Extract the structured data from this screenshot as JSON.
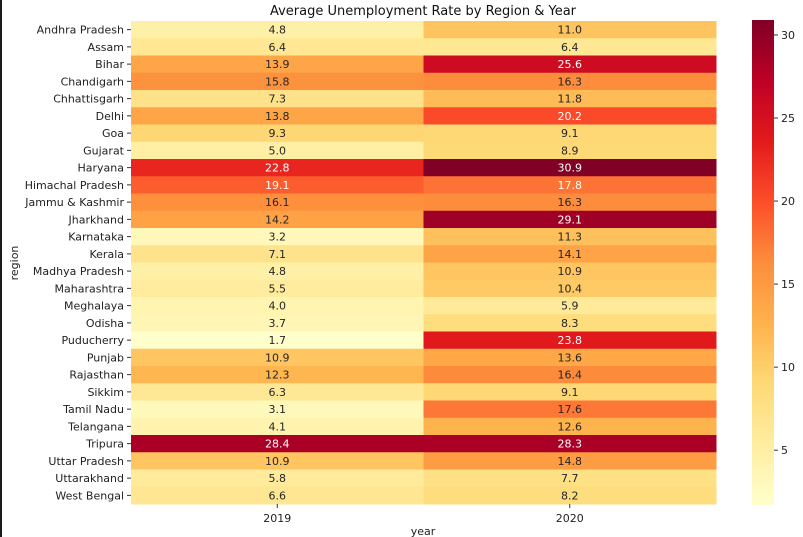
{
  "chart_data": {
    "type": "heatmap",
    "title": "Average Unemployment Rate by Region & Year",
    "xlabel": "year",
    "ylabel": "region",
    "x": [
      "2019",
      "2020"
    ],
    "y": [
      "Andhra Pradesh",
      "Assam",
      "Bihar",
      "Chandigarh",
      "Chhattisgarh",
      "Delhi",
      "Goa",
      "Gujarat",
      "Haryana",
      "Himachal Pradesh",
      "Jammu & Kashmir",
      "Jharkhand",
      "Karnataka",
      "Kerala",
      "Madhya Pradesh",
      "Maharashtra",
      "Meghalaya",
      "Odisha",
      "Puducherry",
      "Punjab",
      "Rajasthan",
      "Sikkim",
      "Tamil Nadu",
      "Telangana",
      "Tripura",
      "Uttar Pradesh",
      "Uttarakhand",
      "West Bengal"
    ],
    "values": [
      [
        "4.8",
        "11.0"
      ],
      [
        "6.4",
        "6.4"
      ],
      [
        "13.9",
        "25.6"
      ],
      [
        "15.8",
        "16.3"
      ],
      [
        "7.3",
        "11.8"
      ],
      [
        "13.8",
        "20.2"
      ],
      [
        "9.3",
        "9.1"
      ],
      [
        "5.0",
        "8.9"
      ],
      [
        "22.8",
        "30.9"
      ],
      [
        "19.1",
        "17.8"
      ],
      [
        "16.1",
        "16.3"
      ],
      [
        "14.2",
        "29.1"
      ],
      [
        "3.2",
        "11.3"
      ],
      [
        "7.1",
        "14.1"
      ],
      [
        "4.8",
        "10.9"
      ],
      [
        "5.5",
        "10.4"
      ],
      [
        "4.0",
        "5.9"
      ],
      [
        "3.7",
        "8.3"
      ],
      [
        "1.7",
        "23.8"
      ],
      [
        "10.9",
        "13.6"
      ],
      [
        "12.3",
        "16.4"
      ],
      [
        "6.3",
        "9.1"
      ],
      [
        "3.1",
        "17.6"
      ],
      [
        "4.1",
        "12.6"
      ],
      [
        "28.4",
        "28.3"
      ],
      [
        "10.9",
        "14.8"
      ],
      [
        "5.8",
        "7.7"
      ],
      [
        "6.6",
        "8.2"
      ]
    ],
    "colormap": "YlOrRd",
    "vmin": 1.7,
    "vmax": 30.9,
    "colorbar_ticks": [
      "5",
      "10",
      "15",
      "20",
      "25",
      "30"
    ],
    "legend": "colorbar-right"
  }
}
